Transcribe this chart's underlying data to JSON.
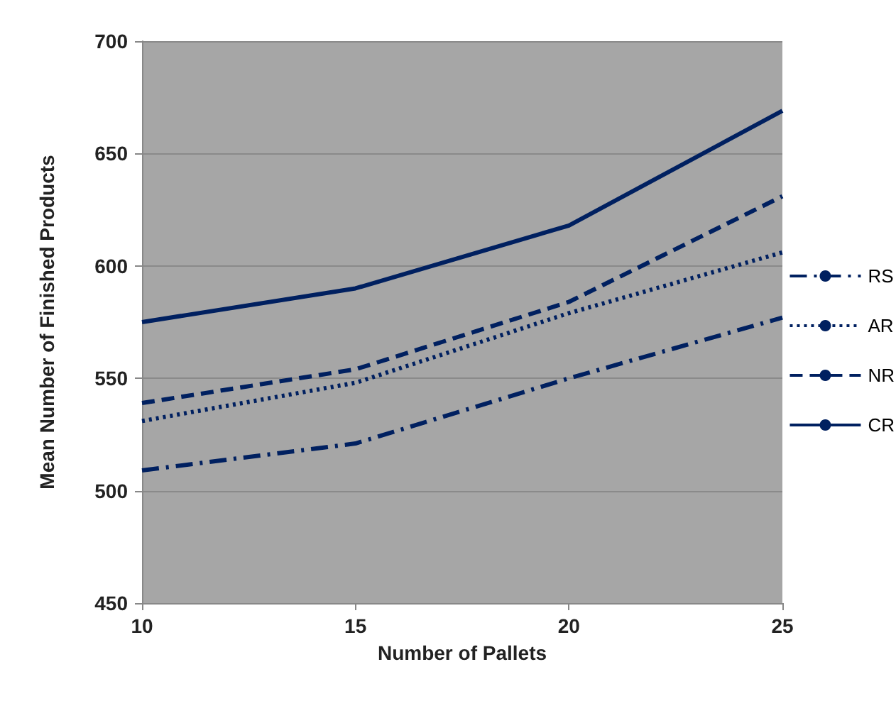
{
  "chart_data": {
    "type": "line",
    "xlabel": "Number of Pallets",
    "ylabel": "Mean Number of Finished Products",
    "x": [
      10,
      15,
      20,
      25
    ],
    "xlim": [
      10,
      25
    ],
    "xticks": [
      10,
      15,
      20,
      25
    ],
    "ylim": [
      450,
      700
    ],
    "yticks": [
      450,
      500,
      550,
      600,
      650,
      700
    ],
    "grid": "y",
    "legend": "right",
    "marker": "none",
    "series": [
      {
        "name": "RS",
        "color": "#002060",
        "line_style": "dashdot",
        "values": [
          509,
          521,
          550,
          577
        ]
      },
      {
        "name": "AR",
        "color": "#002060",
        "line_style": "dotted",
        "values": [
          531,
          548,
          579,
          606
        ]
      },
      {
        "name": "NR",
        "color": "#002060",
        "line_style": "dashed",
        "values": [
          539,
          554,
          584,
          631
        ]
      },
      {
        "name": "CR",
        "color": "#002060",
        "line_style": "solid",
        "values": [
          575,
          590,
          618,
          669
        ]
      }
    ]
  }
}
